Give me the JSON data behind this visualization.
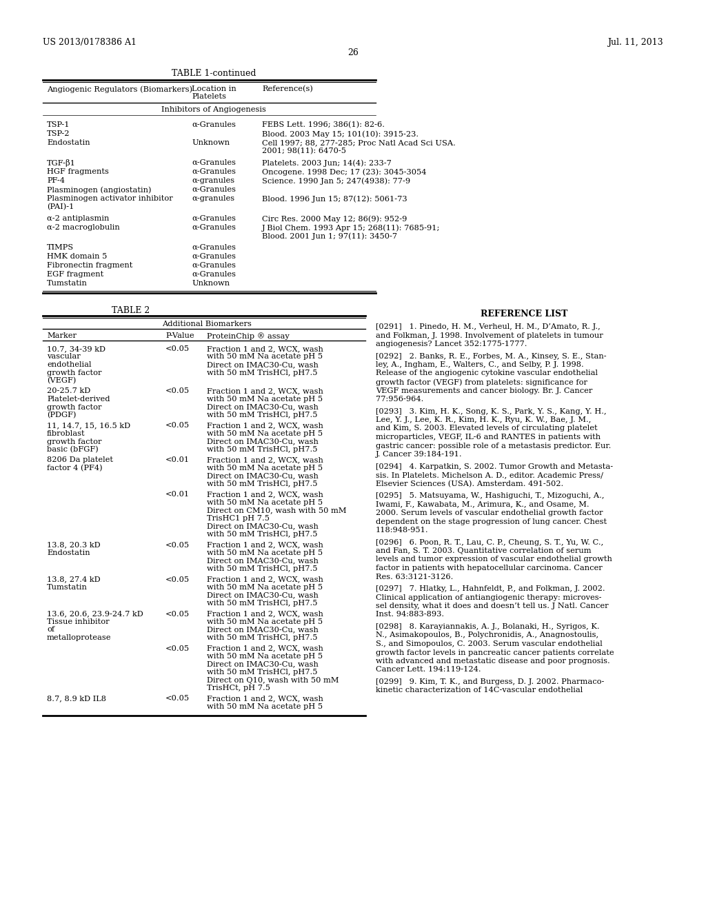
{
  "header_left": "US 2013/0178386 A1",
  "header_right": "Jul. 11, 2013",
  "page_number": "26",
  "table1_title": "TABLE 1-continued",
  "table1_col_header1": "Angiogenic Regulators (Biomarkers)",
  "table1_col_header2a": "Location in",
  "table1_col_header2b": "Platelets",
  "table1_col_header3": "Reference(s)",
  "table1_section": "Inhibitors of Angiogenesis",
  "table2_title": "TABLE 2",
  "table2_subtitle": "Additional Biomarkers",
  "table2_col_header1": "Marker",
  "table2_col_header2": "P-Value",
  "table2_col_header3": "ProteinChip ® assay",
  "ref_title": "REFERENCE LIST",
  "bg_color": "#ffffff",
  "text_color": "#000000"
}
